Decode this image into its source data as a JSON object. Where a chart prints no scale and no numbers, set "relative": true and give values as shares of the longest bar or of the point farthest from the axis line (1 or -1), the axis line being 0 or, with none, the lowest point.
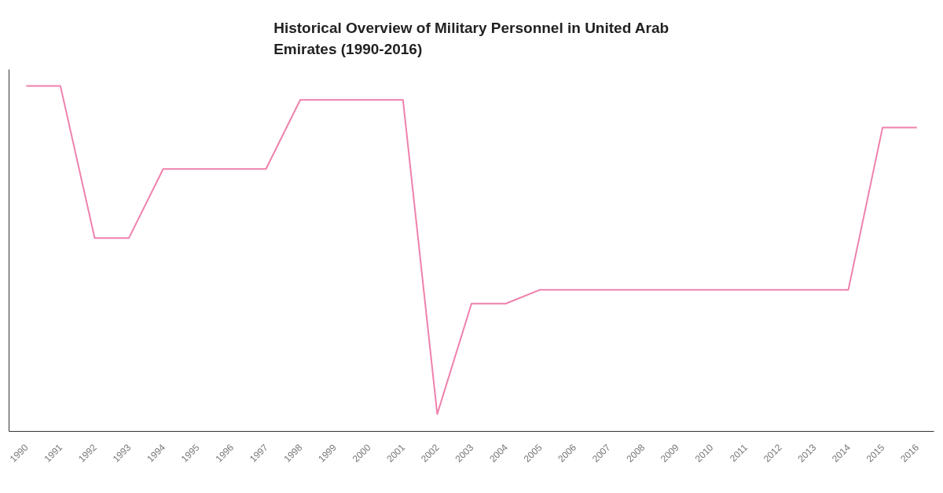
{
  "chart_data": {
    "type": "line",
    "title": "Historical Overview of Military Personnel in United Arab Emirates (1990-2016)",
    "categories": [
      "1990",
      "1991",
      "1992",
      "1993",
      "1994",
      "1995",
      "1996",
      "1997",
      "1998",
      "1999",
      "2000",
      "2001",
      "2002",
      "2003",
      "2004",
      "2005",
      "2006",
      "2007",
      "2008",
      "2009",
      "2010",
      "2011",
      "2012",
      "2013",
      "2014",
      "2015",
      "2016"
    ],
    "series": [
      {
        "color": "#ef80ad",
        "values": [
          1,
          1,
          0.56,
          0.56,
          0.76,
          0.76,
          0.76,
          0.76,
          0.96,
          0.96,
          0.96,
          0.96,
          0.05,
          0.37,
          0.37,
          0.41,
          0.41,
          0.41,
          0.41,
          0.41,
          0.41,
          0.41,
          0.41,
          0.41,
          0.41,
          0.88,
          0.88
        ]
      }
    ],
    "relative": true,
    "tick_labels": "x",
    "grid": false,
    "line_style": "solid"
  }
}
